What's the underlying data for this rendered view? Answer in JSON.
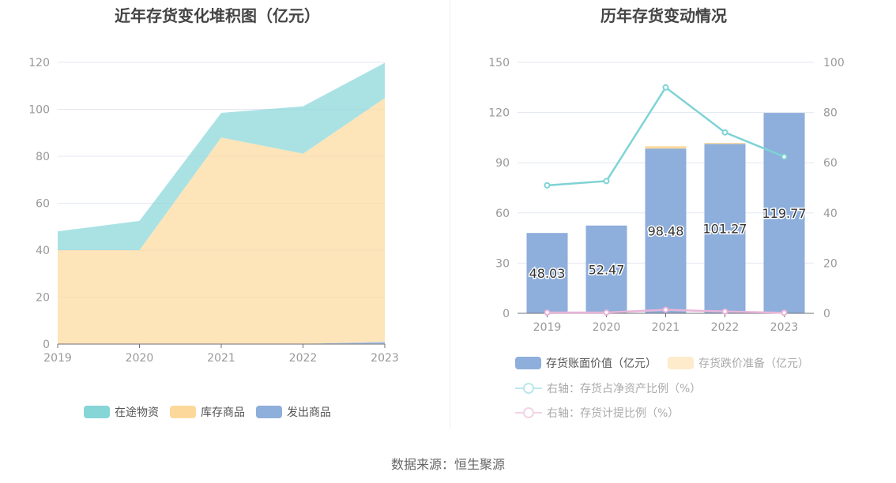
{
  "chart_data": [
    {
      "type": "area",
      "stacked": true,
      "title": "近年存货变化堆积图（亿元）",
      "categories": [
        "2019",
        "2020",
        "2021",
        "2022",
        "2023"
      ],
      "ylim": [
        0,
        120
      ],
      "yticks": [
        0,
        20,
        40,
        60,
        80,
        100,
        120
      ],
      "grid": true,
      "legend": "bottom",
      "series": [
        {
          "name": "发出商品",
          "color": "#8eaedb",
          "values": [
            0,
            0,
            0,
            0.1,
            1.0
          ]
        },
        {
          "name": "库存商品",
          "color": "#fcd99b",
          "values": [
            40,
            40,
            88,
            81,
            103.8
          ]
        },
        {
          "name": "在途物资",
          "color": "#86d6d8",
          "values": [
            8.03,
            12.47,
            10.48,
            20.17,
            14.97
          ]
        }
      ]
    },
    {
      "type": "bar+line",
      "title": "历年存货变动情况",
      "categories": [
        "2019",
        "2020",
        "2021",
        "2022",
        "2023"
      ],
      "ylim": [
        0,
        150
      ],
      "yticks": [
        0,
        30,
        60,
        90,
        120,
        150
      ],
      "y2lim": [
        0,
        100
      ],
      "y2ticks": [
        0,
        20,
        40,
        60,
        80,
        100
      ],
      "grid": true,
      "legend": "bottom",
      "series": [
        {
          "name": "存货账面价值（亿元）",
          "type": "bar",
          "color": "#8eaedb",
          "values": [
            48.03,
            52.47,
            98.48,
            101.27,
            119.77
          ],
          "labels": [
            "48.03",
            "52.47",
            "98.48",
            "101.27",
            "119.77"
          ]
        },
        {
          "name": "存货跌价准备（亿元）",
          "type": "bar",
          "color": "#fcd99b",
          "values": [
            0,
            0,
            1.4,
            0.6,
            0
          ]
        },
        {
          "name": "右轴：存货占净资产比例（%）",
          "type": "line",
          "axis": "right",
          "color": "#7fd3d6",
          "values": [
            51.0,
            52.7,
            90.0,
            72.1,
            62.4
          ]
        },
        {
          "name": "右轴：存货计提比例（%）",
          "type": "line",
          "axis": "right",
          "color": "#e8b5d8",
          "values": [
            0.3,
            0.3,
            1.4,
            0.7,
            0.2
          ]
        }
      ]
    }
  ],
  "source": "数据来源：恒生聚源"
}
